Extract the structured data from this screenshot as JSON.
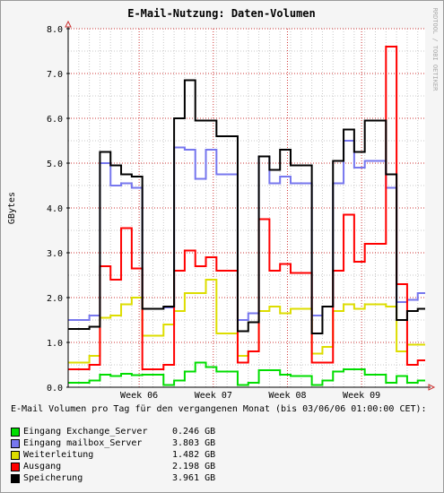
{
  "chart_data": {
    "type": "line",
    "title": "E-Mail-Nutzung: Daten-Volumen",
    "ylabel": "GBytes",
    "xlabel": "",
    "watermark": "RRDTOOL / TOBI OETIKER",
    "ylim": [
      0,
      8
    ],
    "yticks": [
      "0.0",
      "1.0",
      "2.0",
      "3.0",
      "4.0",
      "5.0",
      "6.0",
      "7.0",
      "8.0"
    ],
    "xticks": [
      {
        "label": "Week 06",
        "day": 6.7
      },
      {
        "label": "Week 07",
        "day": 13.7
      },
      {
        "label": "Week 08",
        "day": 20.7
      },
      {
        "label": "Week 09",
        "day": 27.7
      }
    ],
    "xlim": [
      0,
      33.7
    ],
    "grid": true,
    "legend_position": "bottom",
    "legend_title": "E-Mail Volumen pro Tag für den vergangenen Monat (bis 03/06/06 01:00:00 CET):",
    "steps": [
      0,
      2,
      3,
      4,
      5,
      6,
      7,
      9,
      10,
      11,
      12,
      13,
      14,
      16,
      17,
      18,
      19,
      20,
      21,
      23,
      24,
      25,
      26,
      27,
      28,
      30,
      31,
      32,
      33
    ],
    "series": [
      {
        "name": "Eingang Exchange_Server",
        "color": "#00dd00",
        "stat": "0.246 GB",
        "values": [
          0.1,
          0.15,
          0.28,
          0.25,
          0.3,
          0.27,
          0.28,
          0.05,
          0.15,
          0.35,
          0.55,
          0.45,
          0.35,
          0.05,
          0.1,
          0.38,
          0.38,
          0.28,
          0.25,
          0.05,
          0.15,
          0.35,
          0.4,
          0.4,
          0.28,
          0.1,
          0.25,
          0.1,
          0.15
        ]
      },
      {
        "name": "Eingang mailbox_Server",
        "color": "#7777ee",
        "stat": "3.803 GB",
        "values": [
          1.5,
          1.6,
          5.0,
          4.5,
          4.55,
          4.45,
          1.75,
          1.78,
          5.35,
          5.3,
          4.65,
          5.3,
          4.75,
          1.5,
          1.65,
          5.15,
          4.55,
          4.7,
          4.55,
          1.6,
          1.8,
          4.55,
          5.5,
          4.9,
          5.05,
          4.45,
          1.9,
          1.95,
          2.1
        ]
      },
      {
        "name": "Weiterleitung",
        "color": "#dddd00",
        "stat": "1.482 GB",
        "values": [
          0.55,
          0.7,
          1.55,
          1.6,
          1.85,
          2.0,
          1.15,
          1.4,
          1.7,
          2.1,
          2.1,
          2.4,
          1.2,
          0.7,
          0.8,
          1.7,
          1.8,
          1.65,
          1.75,
          0.75,
          0.9,
          1.7,
          1.85,
          1.75,
          1.85,
          1.8,
          0.8,
          0.95,
          0.95
        ]
      },
      {
        "name": "Ausgang",
        "color": "#ff0000",
        "stat": "2.198 GB",
        "values": [
          0.4,
          0.5,
          2.7,
          2.4,
          3.55,
          2.65,
          0.4,
          0.5,
          2.6,
          3.05,
          2.7,
          2.9,
          2.6,
          0.55,
          0.8,
          3.75,
          2.6,
          2.75,
          2.55,
          0.55,
          0.55,
          2.6,
          3.85,
          2.8,
          3.2,
          7.6,
          2.3,
          0.5,
          0.6
        ]
      },
      {
        "name": "Speicherung",
        "color": "#000000",
        "stat": "3.961 GB",
        "values": [
          1.3,
          1.35,
          5.25,
          4.95,
          4.75,
          4.7,
          1.75,
          1.8,
          6.0,
          6.85,
          5.95,
          5.95,
          5.6,
          1.25,
          1.45,
          5.15,
          4.85,
          5.3,
          4.95,
          1.2,
          1.8,
          5.05,
          5.75,
          5.25,
          5.95,
          4.75,
          1.5,
          1.7,
          1.75
        ]
      }
    ]
  }
}
